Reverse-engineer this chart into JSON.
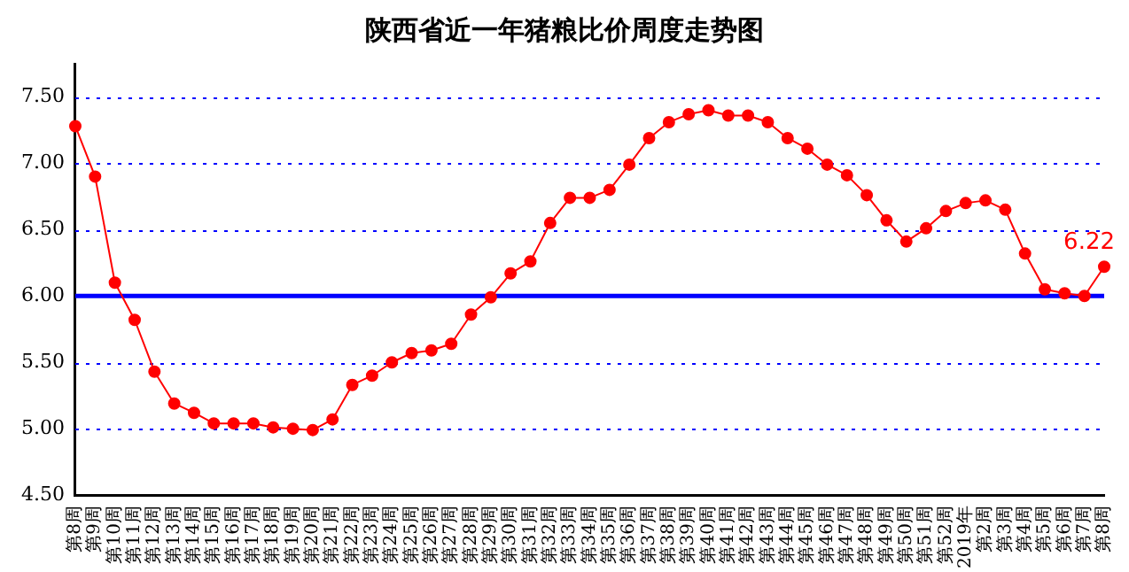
{
  "chart_data": {
    "type": "line",
    "title": "陕西省近一年猪粮比价周度走势图",
    "categories": [
      "第8周",
      "第9周",
      "第10周",
      "第11周",
      "第12周",
      "第13周",
      "第14周",
      "第15周",
      "第16周",
      "第17周",
      "第18周",
      "第19周",
      "第20周",
      "第21周",
      "第22周",
      "第23周",
      "第24周",
      "第25周",
      "第26周",
      "第27周",
      "第28周",
      "第29周",
      "第30周",
      "第31周",
      "第32周",
      "第33周",
      "第34周",
      "第35周",
      "第36周",
      "第37周",
      "第38周",
      "第39周",
      "第40周",
      "第41周",
      "第42周",
      "第43周",
      "第44周",
      "第45周",
      "第46周",
      "第47周",
      "第48周",
      "第49周",
      "第50周",
      "第51周",
      "第52周",
      "2019年",
      "第2周",
      "第3周",
      "第4周",
      "第5周",
      "第6周",
      "第7周",
      "第8周"
    ],
    "series": [
      {
        "color": "#ff0000",
        "values": [
          7.28,
          6.9,
          6.1,
          5.82,
          5.43,
          5.19,
          5.12,
          5.04,
          5.04,
          5.04,
          5.01,
          5.0,
          4.99,
          5.07,
          5.33,
          5.4,
          5.5,
          5.57,
          5.59,
          5.64,
          5.86,
          5.99,
          6.17,
          6.26,
          6.55,
          6.74,
          6.74,
          6.8,
          6.99,
          7.19,
          7.31,
          7.37,
          7.4,
          7.36,
          7.36,
          7.31,
          7.19,
          7.11,
          6.99,
          6.91,
          6.76,
          6.57,
          6.41,
          6.51,
          6.64,
          6.7,
          6.72,
          6.65,
          6.32,
          6.05,
          6.02,
          6.0,
          6.22
        ],
        "value_labels": [
          null,
          null,
          null,
          null,
          null,
          null,
          null,
          null,
          null,
          null,
          null,
          null,
          null,
          null,
          null,
          null,
          null,
          null,
          null,
          null,
          null,
          null,
          null,
          null,
          null,
          null,
          null,
          null,
          null,
          null,
          null,
          null,
          null,
          null,
          null,
          null,
          null,
          null,
          null,
          null,
          null,
          null,
          null,
          null,
          null,
          null,
          null,
          null,
          null,
          null,
          null,
          null,
          "6.22"
        ]
      }
    ],
    "ylim": [
      4.5,
      7.75
    ],
    "yticks": [
      {
        "value": 4.5,
        "label": "4.50"
      },
      {
        "value": 5,
        "label": "5.00"
      },
      {
        "value": 5.5,
        "label": "5.50"
      },
      {
        "value": 6,
        "label": "6.00"
      },
      {
        "value": 6.5,
        "label": "6.50"
      },
      {
        "value": 7,
        "label": "7.00"
      },
      {
        "value": 7.5,
        "label": "7.50"
      }
    ],
    "ref_lines": [
      {
        "axis": "y",
        "value": 6,
        "color": "#0000ff"
      }
    ],
    "grid": "y",
    "legend": false,
    "marker": "circle",
    "line_style": "solid"
  }
}
